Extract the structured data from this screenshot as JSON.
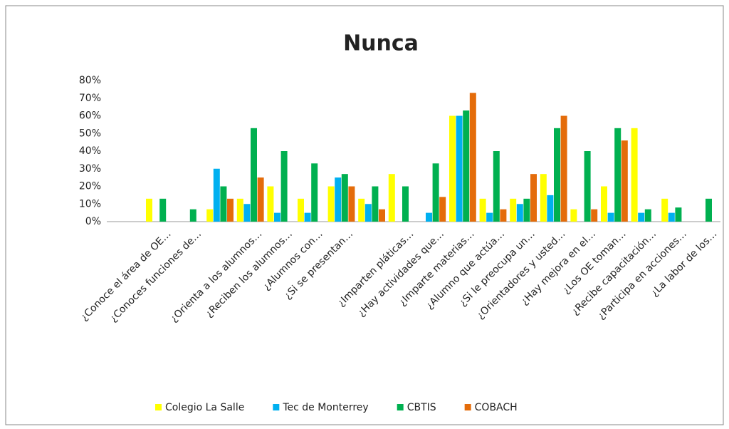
{
  "chart_data": {
    "type": "bar",
    "title": "Nunca",
    "categories": [
      null,
      "¿Conoce el área de OE…",
      "¿Conoces funciones de…",
      null,
      "¿Orienta a los alumnos…",
      "¿Reciben los alumnos…",
      "¿Alumnos con…",
      "¿Si se presentan…",
      null,
      "¿Imparten pláticas…",
      "¿Hay actividades que…",
      "¿Imparte materias…",
      "¿Alumno que actúa…",
      "¿Si le preocupa un…",
      "¿Orientadores y usted…",
      "¿Hay mejora en el…",
      "¿Los OE toman…",
      "¿Recibe capacitación…",
      "¿Participa en acciones…",
      "¿La labor de los…"
    ],
    "series": [
      {
        "name": "Colegio La Salle",
        "color": "#ffff00",
        "values": [
          0,
          13,
          0,
          7,
          13,
          20,
          13,
          20,
          13,
          27,
          0,
          60,
          13,
          13,
          27,
          7,
          20,
          53,
          13,
          0
        ]
      },
      {
        "name": "Tec de Monterrey",
        "color": "#00b0f0",
        "values": [
          0,
          0,
          0,
          30,
          10,
          5,
          5,
          25,
          10,
          0,
          5,
          60,
          5,
          10,
          15,
          0,
          5,
          5,
          5,
          0
        ]
      },
      {
        "name": "CBTIS",
        "color": "#00b050",
        "values": [
          0,
          13,
          7,
          20,
          53,
          40,
          33,
          27,
          20,
          20,
          33,
          63,
          40,
          13,
          53,
          40,
          53,
          7,
          8,
          13
        ]
      },
      {
        "name": "COBACH",
        "color": "#e46c0a",
        "values": [
          0,
          0,
          0,
          13,
          25,
          0,
          0,
          20,
          7,
          0,
          14,
          73,
          7,
          27,
          60,
          7,
          46,
          0,
          0,
          0
        ]
      }
    ],
    "ylim": [
      0,
      80
    ],
    "yticks": [
      {
        "value": 0,
        "label": "0%"
      },
      {
        "value": 10,
        "label": "10%"
      },
      {
        "value": 20,
        "label": "20%"
      },
      {
        "value": 30,
        "label": "30%"
      },
      {
        "value": 40,
        "label": "40%"
      },
      {
        "value": 50,
        "label": "50%"
      },
      {
        "value": 60,
        "label": "60%"
      },
      {
        "value": 70,
        "label": "70%"
      },
      {
        "value": 80,
        "label": "80%"
      }
    ],
    "grid": false,
    "legend": "bottom"
  }
}
